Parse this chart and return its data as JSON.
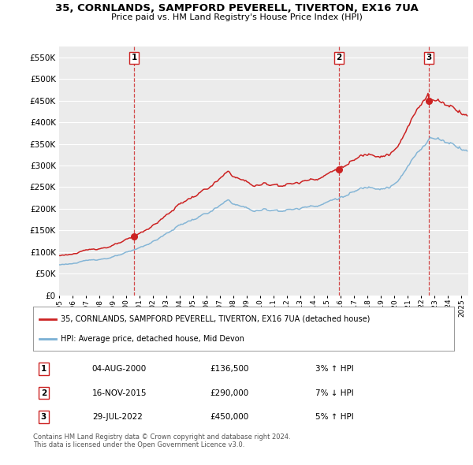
{
  "title": "35, CORNLANDS, SAMPFORD PEVERELL, TIVERTON, EX16 7UA",
  "subtitle": "Price paid vs. HM Land Registry's House Price Index (HPI)",
  "ylim": [
    0,
    575000
  ],
  "yticks": [
    0,
    50000,
    100000,
    150000,
    200000,
    250000,
    300000,
    350000,
    400000,
    450000,
    500000,
    550000
  ],
  "bg_color": "#ffffff",
  "plot_bg_color": "#ebebeb",
  "grid_color": "#ffffff",
  "hpi_color": "#7ab0d4",
  "price_color": "#cc2222",
  "sale_years": [
    2000.58,
    2015.87,
    2022.56
  ],
  "sale_prices": [
    136500,
    290000,
    450000
  ],
  "sale_labels": [
    "1",
    "2",
    "3"
  ],
  "table_data": [
    [
      "1",
      "04-AUG-2000",
      "£136,500",
      "3% ↑ HPI"
    ],
    [
      "2",
      "16-NOV-2015",
      "£290,000",
      "7% ↓ HPI"
    ],
    [
      "3",
      "29-JUL-2022",
      "£450,000",
      "5% ↑ HPI"
    ]
  ],
  "legend_entries": [
    "35, CORNLANDS, SAMPFORD PEVERELL, TIVERTON, EX16 7UA (detached house)",
    "HPI: Average price, detached house, Mid Devon"
  ],
  "footnote": "Contains HM Land Registry data © Crown copyright and database right 2024.\nThis data is licensed under the Open Government Licence v3.0.",
  "xlim_start": 1995,
  "xlim_end": 2025.5
}
